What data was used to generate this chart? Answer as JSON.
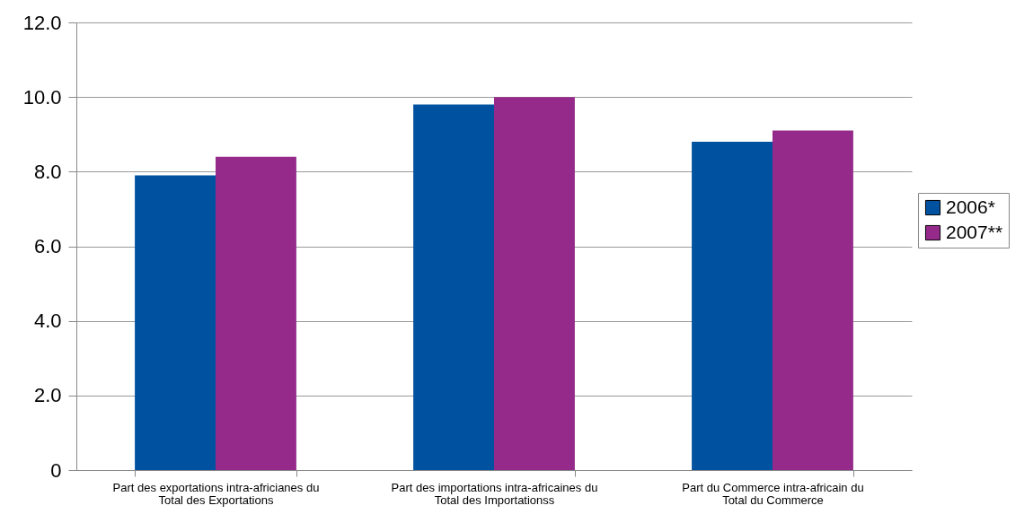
{
  "chart_data": {
    "type": "bar",
    "categories": [
      "Part des exportations intra-africianes du\nTotal des Exportations",
      "Part des importations intra-africaines du\nTotal des Importationss",
      "Part du Commerce intra-africain du\nTotal du Commerce"
    ],
    "series": [
      {
        "name": "2006*",
        "color": "#0052a0",
        "values": [
          7.9,
          9.8,
          8.8
        ]
      },
      {
        "name": "2007**",
        "color": "#952a8b",
        "values": [
          8.4,
          10.0,
          9.1
        ]
      }
    ],
    "ylim": [
      0,
      12
    ],
    "yticks": [
      0,
      {
        "value": 2,
        "label": "2.0"
      },
      {
        "value": 4,
        "label": "4.0"
      },
      {
        "value": 6,
        "label": "6.0"
      },
      {
        "value": 8,
        "label": "8.0"
      },
      {
        "value": 10,
        "label": "10.0"
      },
      {
        "value": 12,
        "label": "12.0"
      }
    ],
    "grid": "y",
    "legend": "right"
  }
}
